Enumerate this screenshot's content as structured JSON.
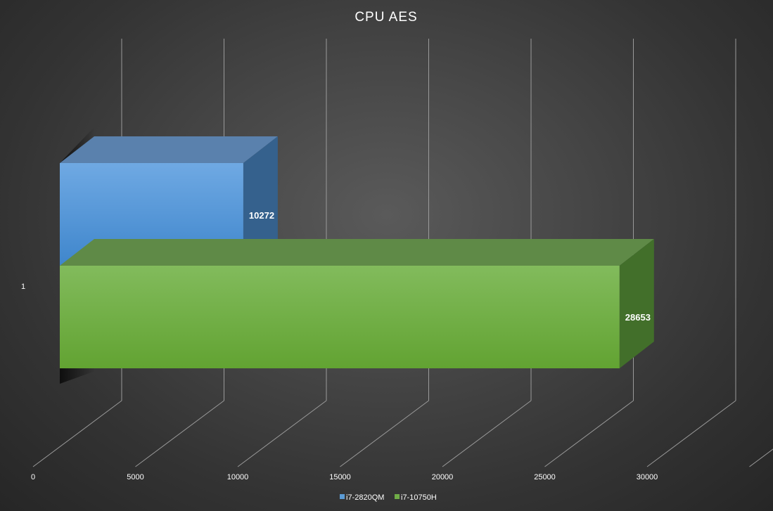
{
  "chart_data": {
    "type": "bar",
    "orientation": "horizontal",
    "style": "3d",
    "title": "CPU AES",
    "categories": [
      "1"
    ],
    "series": [
      {
        "name": "i7-2820QM",
        "values": [
          10272
        ],
        "color": "#5b9bd5"
      },
      {
        "name": "i7-10750H",
        "values": [
          28653
        ],
        "color": "#70ad47"
      }
    ],
    "xlim": [
      0,
      35000
    ],
    "x_ticks": [
      "0",
      "5000",
      "10000",
      "15000",
      "20000",
      "25000",
      "30000"
    ],
    "grid": true,
    "legend_position": "bottom"
  }
}
